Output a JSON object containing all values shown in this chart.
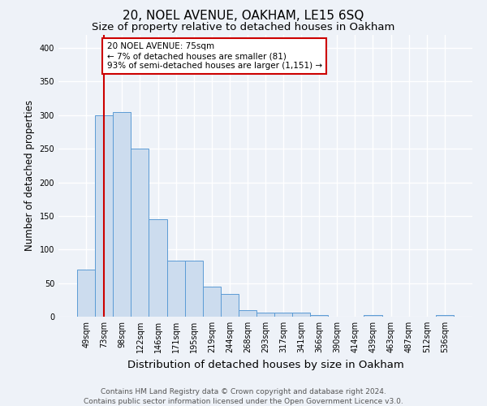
{
  "title1": "20, NOEL AVENUE, OAKHAM, LE15 6SQ",
  "title2": "Size of property relative to detached houses in Oakham",
  "xlabel": "Distribution of detached houses by size in Oakham",
  "ylabel": "Number of detached properties",
  "categories": [
    "49sqm",
    "73sqm",
    "98sqm",
    "122sqm",
    "146sqm",
    "171sqm",
    "195sqm",
    "219sqm",
    "244sqm",
    "268sqm",
    "293sqm",
    "317sqm",
    "341sqm",
    "366sqm",
    "390sqm",
    "414sqm",
    "439sqm",
    "463sqm",
    "487sqm",
    "512sqm",
    "536sqm"
  ],
  "values": [
    70,
    300,
    305,
    250,
    145,
    83,
    83,
    45,
    34,
    10,
    6,
    6,
    6,
    3,
    0,
    0,
    3,
    0,
    0,
    0,
    3
  ],
  "bar_color": "#ccdcee",
  "bar_edge_color": "#5b9bd5",
  "vline_x": 1,
  "vline_color": "#cc0000",
  "annotation_text": "20 NOEL AVENUE: 75sqm\n← 7% of detached houses are smaller (81)\n93% of semi-detached houses are larger (1,151) →",
  "annotation_box_color": "#ffffff",
  "annotation_box_edge_color": "#cc0000",
  "bg_color": "#eef2f8",
  "grid_color": "#ffffff",
  "footnote": "Contains HM Land Registry data © Crown copyright and database right 2024.\nContains public sector information licensed under the Open Government Licence v3.0.",
  "ylim": [
    0,
    420
  ],
  "title1_fontsize": 11,
  "title2_fontsize": 9.5,
  "xlabel_fontsize": 9.5,
  "ylabel_fontsize": 8.5,
  "tick_fontsize": 7,
  "footnote_fontsize": 6.5,
  "annot_fontsize": 7.5
}
